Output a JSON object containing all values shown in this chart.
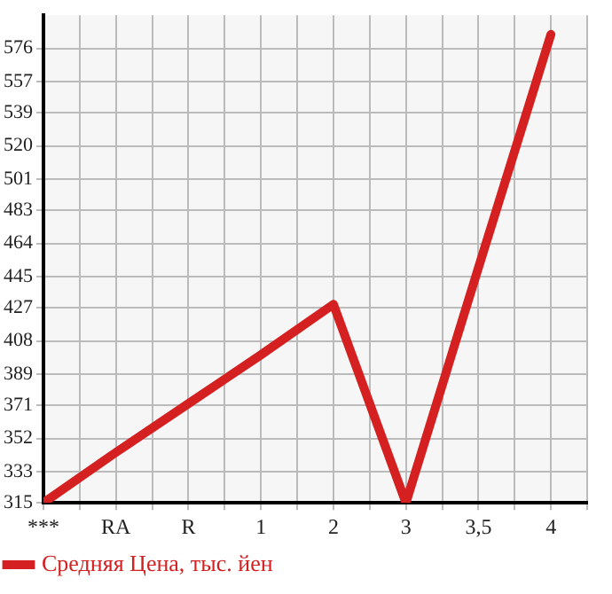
{
  "chart_data": {
    "type": "line",
    "categories": [
      "***",
      "RA",
      "R",
      "1",
      "2",
      "3",
      "3,5",
      "4"
    ],
    "series": [
      {
        "name": "Средняя Цена, тыс. йен",
        "color": "#d42020",
        "values": [
          315,
          344,
          372,
          400,
          429,
          315,
          450,
          584
        ]
      }
    ],
    "ylim": [
      315,
      595
    ],
    "yticks": [
      315,
      333,
      352,
      371,
      389,
      408,
      427,
      445,
      464,
      483,
      501,
      520,
      539,
      557,
      576
    ],
    "grid": true,
    "legend": "bottom left",
    "marker": "none",
    "line_style": "solid"
  }
}
